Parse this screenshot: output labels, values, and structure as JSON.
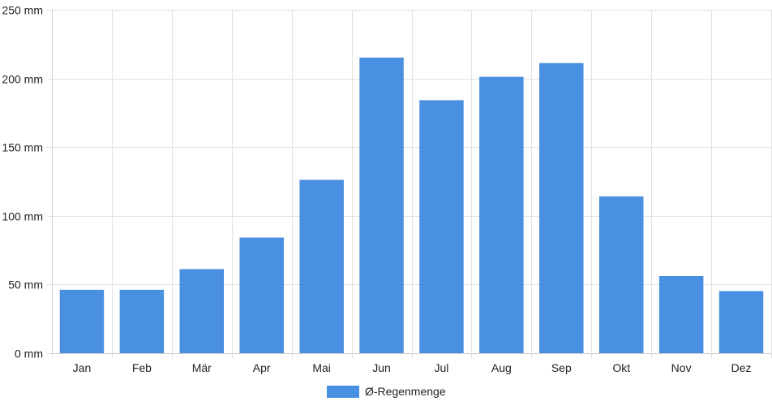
{
  "chart_data": {
    "type": "bar",
    "categories": [
      "Jan",
      "Feb",
      "Mär",
      "Apr",
      "Mai",
      "Jun",
      "Jul",
      "Aug",
      "Sep",
      "Okt",
      "Nov",
      "Dez"
    ],
    "series": [
      {
        "name": "Ø-Regenmenge",
        "values": [
          46,
          46,
          61,
          84,
          126,
          215,
          184,
          201,
          211,
          114,
          56,
          45
        ],
        "color": "#4a90e2"
      }
    ],
    "yticks": [
      0,
      50,
      100,
      150,
      200,
      250
    ],
    "ytick_unit": "mm",
    "ylim": [
      0,
      250
    ],
    "grid": true,
    "legend_position": "bottom-center"
  }
}
